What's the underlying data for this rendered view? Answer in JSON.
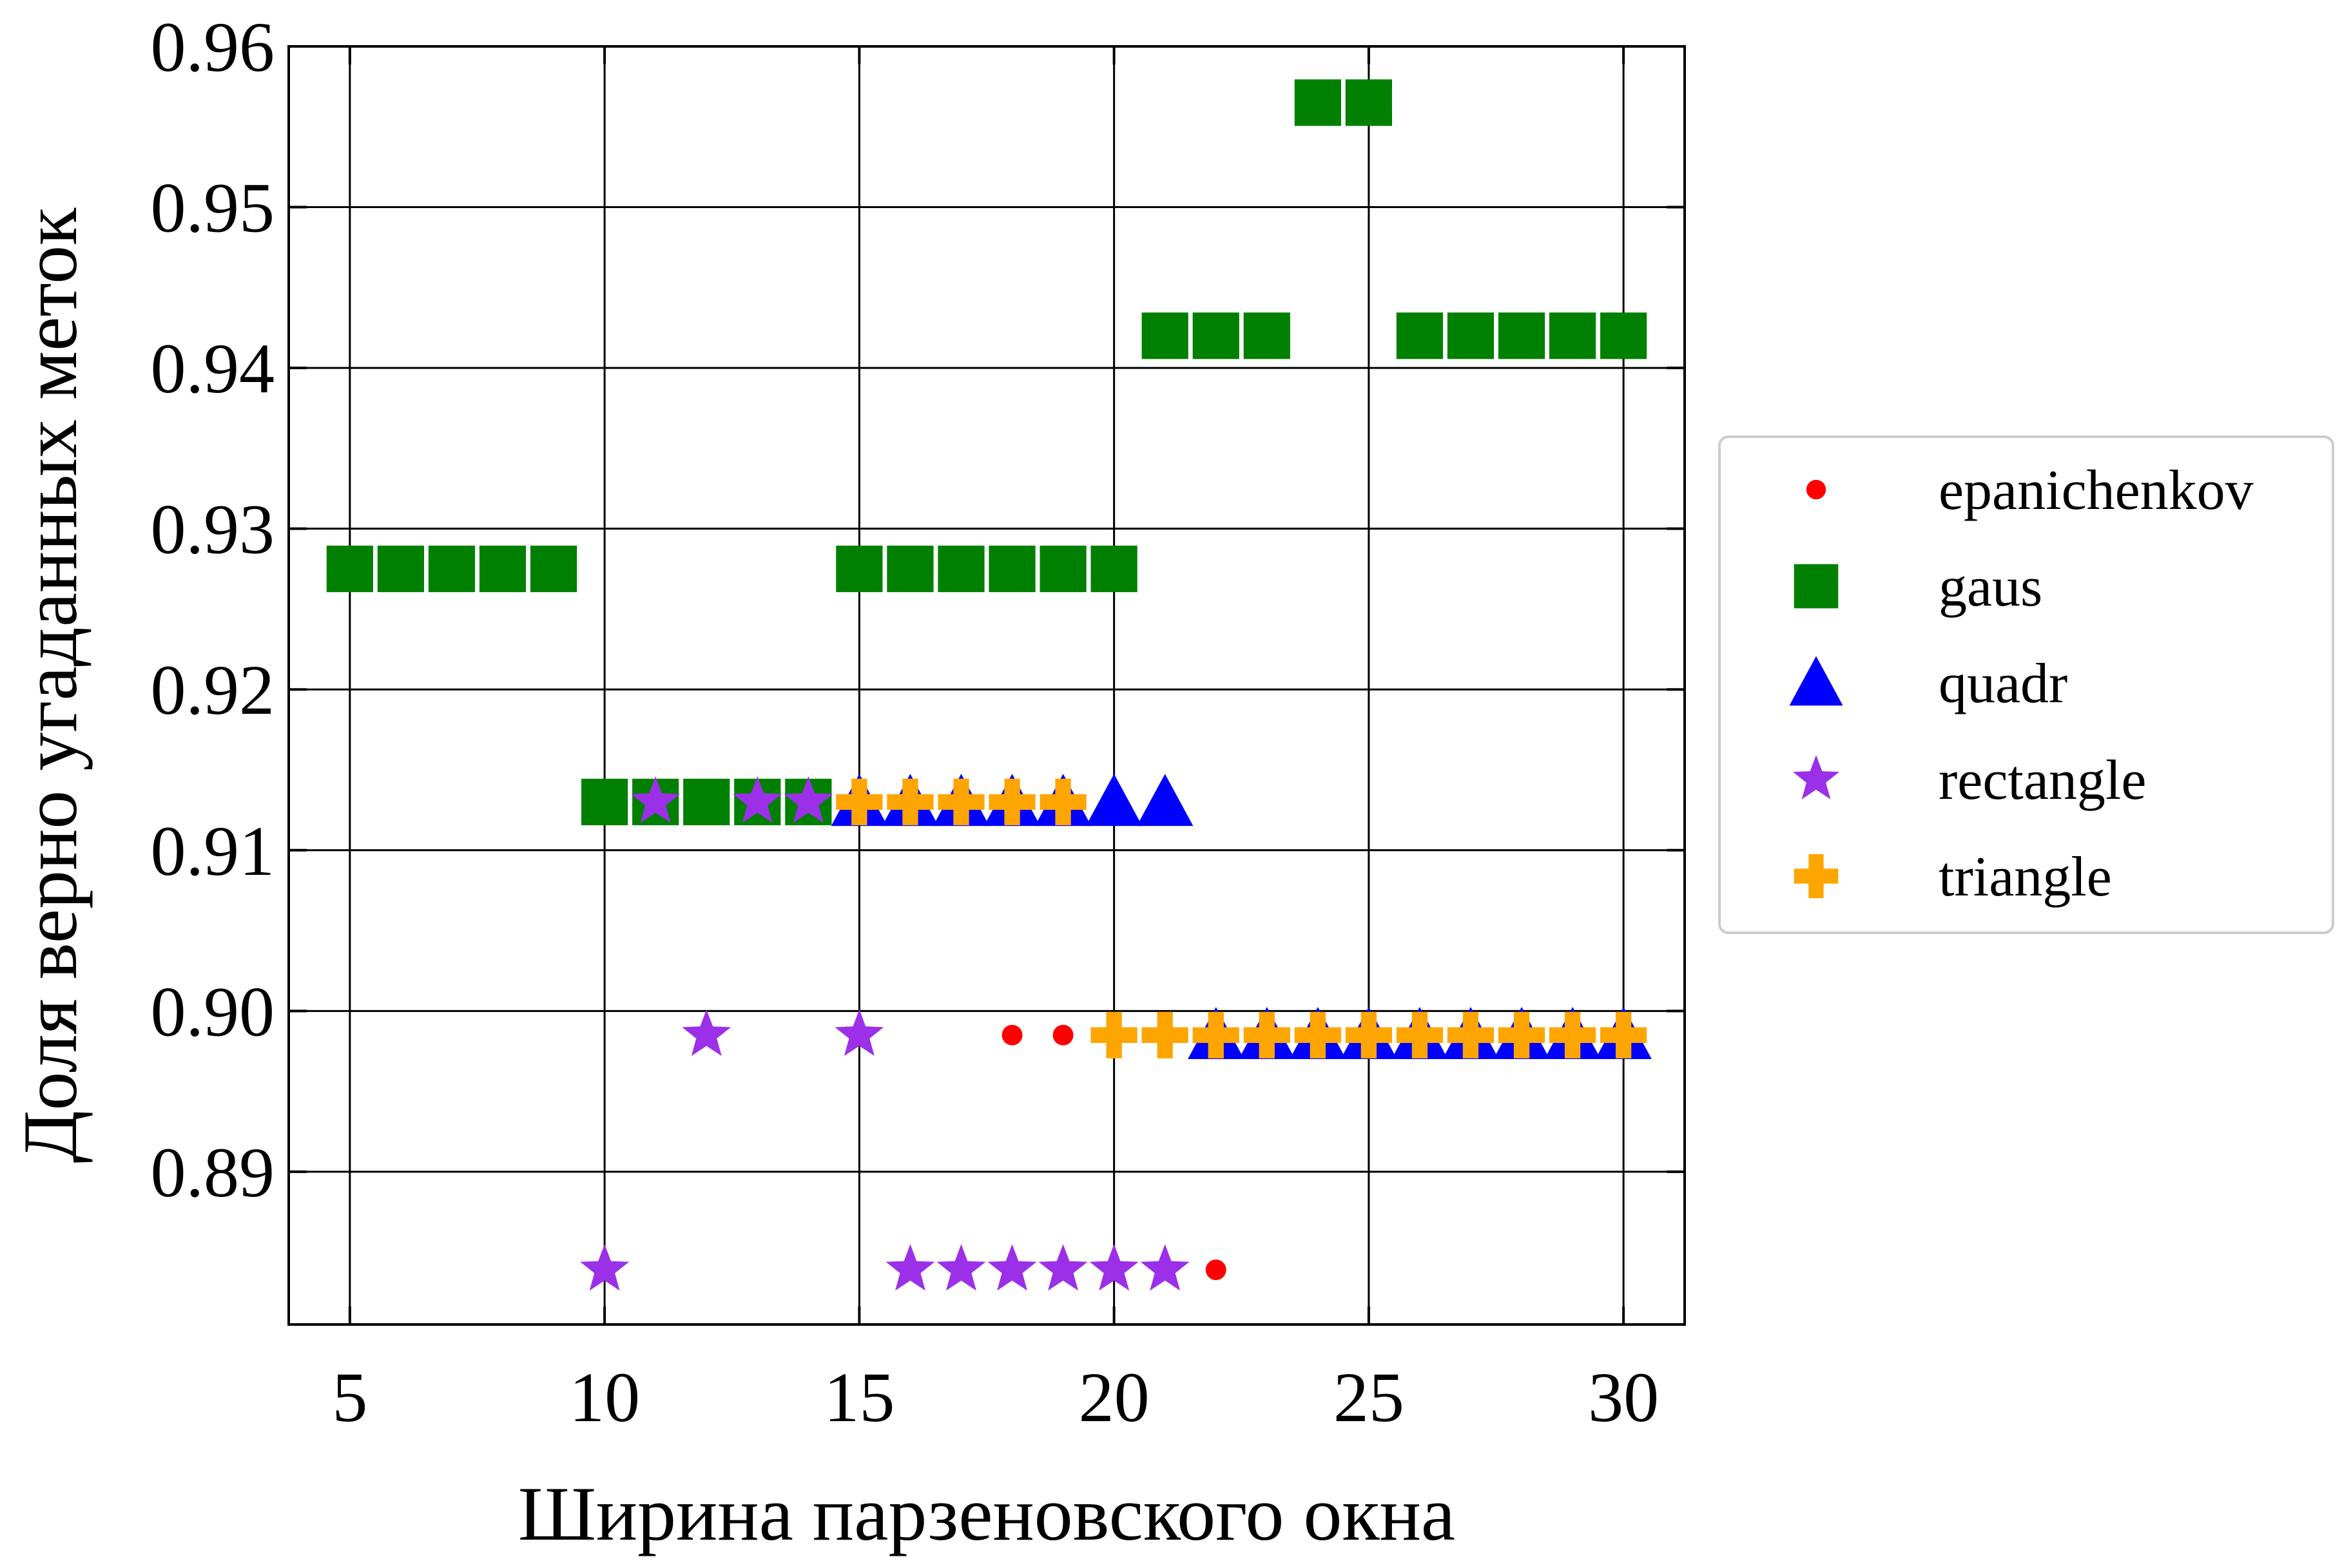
{
  "chart_data": {
    "type": "scatter",
    "title": "",
    "xlabel": "Ширина парзеновского окна",
    "ylabel": "Доля верно угаданных меток",
    "xlim": [
      3.8,
      31.2
    ],
    "ylim": [
      0.8805,
      0.96
    ],
    "xticks": [
      5,
      10,
      15,
      20,
      25,
      30
    ],
    "yticks": [
      0.89,
      0.9,
      0.91,
      0.92,
      0.93,
      0.94,
      0.95,
      0.96
    ],
    "ytick_labels": [
      "0.89",
      "0.90",
      "0.91",
      "0.92",
      "0.93",
      "0.94",
      "0.95",
      "0.96"
    ],
    "grid": true,
    "legend_position": "right-outside",
    "series": [
      {
        "name": "epanichenkov",
        "marker": "circle",
        "color": "#ff0000",
        "points": [
          [
            18,
            0.8985
          ],
          [
            19,
            0.8985
          ],
          [
            22,
            0.8839
          ]
        ]
      },
      {
        "name": "gaus",
        "marker": "square",
        "color": "#008000",
        "points": [
          [
            5,
            0.9275
          ],
          [
            6,
            0.9275
          ],
          [
            7,
            0.9275
          ],
          [
            8,
            0.9275
          ],
          [
            9,
            0.9275
          ],
          [
            10,
            0.913
          ],
          [
            11,
            0.913
          ],
          [
            12,
            0.913
          ],
          [
            13,
            0.913
          ],
          [
            14,
            0.913
          ],
          [
            15,
            0.9275
          ],
          [
            16,
            0.9275
          ],
          [
            17,
            0.9275
          ],
          [
            18,
            0.9275
          ],
          [
            19,
            0.9275
          ],
          [
            20,
            0.9275
          ],
          [
            21,
            0.942
          ],
          [
            22,
            0.942
          ],
          [
            23,
            0.942
          ],
          [
            24,
            0.9565
          ],
          [
            25,
            0.9565
          ],
          [
            26,
            0.942
          ],
          [
            27,
            0.942
          ],
          [
            28,
            0.942
          ],
          [
            29,
            0.942
          ],
          [
            30,
            0.942
          ]
        ]
      },
      {
        "name": "quadr",
        "marker": "triangle",
        "color": "#0000ff",
        "points": [
          [
            15,
            0.913
          ],
          [
            16,
            0.913
          ],
          [
            17,
            0.913
          ],
          [
            18,
            0.913
          ],
          [
            19,
            0.913
          ],
          [
            20,
            0.913
          ],
          [
            21,
            0.913
          ],
          [
            22,
            0.8985
          ],
          [
            23,
            0.8985
          ],
          [
            24,
            0.8985
          ],
          [
            25,
            0.8985
          ],
          [
            26,
            0.8985
          ],
          [
            27,
            0.8985
          ],
          [
            28,
            0.8985
          ],
          [
            29,
            0.8985
          ],
          [
            30,
            0.8985
          ]
        ]
      },
      {
        "name": "rectangle",
        "marker": "star",
        "color": "#9b30e8",
        "points": [
          [
            10,
            0.8839
          ],
          [
            11,
            0.913
          ],
          [
            12,
            0.8985
          ],
          [
            13,
            0.913
          ],
          [
            14,
            0.913
          ],
          [
            15,
            0.8985
          ],
          [
            16,
            0.8839
          ],
          [
            17,
            0.8839
          ],
          [
            18,
            0.8839
          ],
          [
            19,
            0.8839
          ],
          [
            20,
            0.8839
          ],
          [
            21,
            0.8839
          ]
        ]
      },
      {
        "name": "triangle",
        "marker": "plus",
        "color": "#ffa500",
        "points": [
          [
            15,
            0.913
          ],
          [
            16,
            0.913
          ],
          [
            17,
            0.913
          ],
          [
            18,
            0.913
          ],
          [
            19,
            0.913
          ],
          [
            20,
            0.8985
          ],
          [
            21,
            0.8985
          ],
          [
            22,
            0.8985
          ],
          [
            23,
            0.8985
          ],
          [
            24,
            0.8985
          ],
          [
            25,
            0.8985
          ],
          [
            26,
            0.8985
          ],
          [
            27,
            0.8985
          ],
          [
            28,
            0.8985
          ],
          [
            29,
            0.8985
          ],
          [
            30,
            0.8985
          ]
        ]
      }
    ]
  }
}
